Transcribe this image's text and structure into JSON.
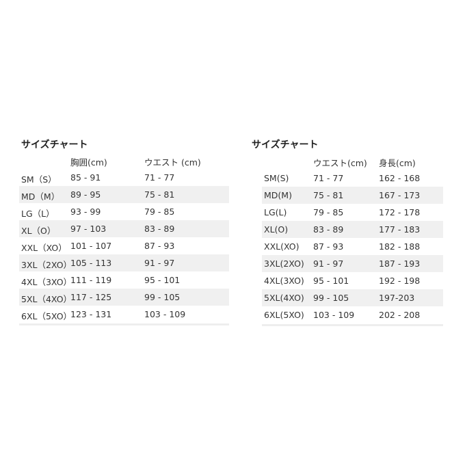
{
  "left": {
    "title": "サイズチャート",
    "headers": [
      "",
      "胸囲(cm)",
      "ウエスト (cm)"
    ],
    "rows": [
      [
        "SM（S）",
        "85 - 91",
        "71 - 77"
      ],
      [
        "MD（M）",
        "89 - 95",
        "75 - 81"
      ],
      [
        "LG（L）",
        "93 - 99",
        "79 - 85"
      ],
      [
        "XL（O）",
        "97 - 103",
        "83 - 89"
      ],
      [
        "XXL（XO）",
        "101 - 107",
        "87 - 93"
      ],
      [
        "3XL（2XO）",
        "105 - 113",
        "91 - 97"
      ],
      [
        "4XL（3XO）",
        "111 - 119",
        "95 - 101"
      ],
      [
        "5XL（4XO）",
        "117 - 125",
        "99 - 105"
      ],
      [
        "6XL（5XO）",
        "123 - 131",
        "103 - 109"
      ]
    ]
  },
  "right": {
    "title": "サイズチャート",
    "headers": [
      "",
      "ウエスト(cm)",
      "身長(cm)"
    ],
    "rows": [
      [
        "SM(S)",
        "71 - 77",
        "162 - 168"
      ],
      [
        "MD(M)",
        "75 - 81",
        "167 - 173"
      ],
      [
        "LG(L)",
        "79 - 85",
        "172 - 178"
      ],
      [
        "XL(O)",
        "83 - 89",
        "177 - 183"
      ],
      [
        "XXL(XO)",
        "87 - 93",
        "182 - 188"
      ],
      [
        "3XL(2XO)",
        "91 - 97",
        "187 - 193"
      ],
      [
        "4XL(3XO)",
        "95 - 101",
        "192 - 198"
      ],
      [
        "5XL(4XO)",
        "99 - 105",
        "197-203"
      ],
      [
        "6XL(5XO)",
        "103 - 109",
        "202 - 208"
      ]
    ]
  },
  "colors": {
    "alt_row": "#f0f0f0",
    "text": "#333333"
  }
}
